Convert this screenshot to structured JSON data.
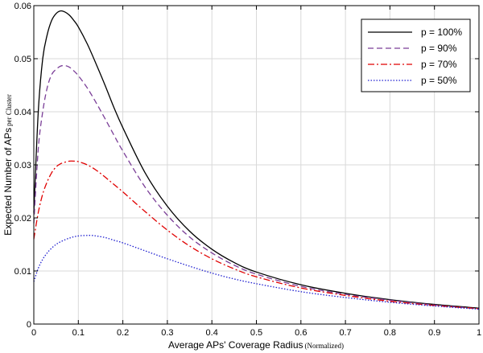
{
  "chart_data": {
    "type": "line",
    "xlabel": "Average APs' Coverage Radius",
    "xlabel_sub": "(Normalized)",
    "ylabel": "Expected Number of APs",
    "ylabel_sub": "per Cluster",
    "xlim": [
      0,
      1
    ],
    "ylim": [
      0,
      0.06
    ],
    "x_ticks": [
      0,
      0.1,
      0.2,
      0.3,
      0.4,
      0.5,
      0.6,
      0.7,
      0.8,
      0.9,
      1
    ],
    "x_tick_labels": [
      "0",
      "0.1",
      "0.2",
      "0.3",
      "0.4",
      "0.5",
      "0.6",
      "0.7",
      "0.8",
      "0.9",
      "1"
    ],
    "y_ticks": [
      0,
      0.01,
      0.02,
      0.03,
      0.04,
      0.05,
      0.06
    ],
    "y_tick_labels": [
      "0",
      "0.01",
      "0.02",
      "0.03",
      "0.04",
      "0.05",
      "0.06"
    ],
    "grid": true,
    "legend_position": "top-right",
    "series": [
      {
        "name": "p = 100%",
        "color": "#000000",
        "dash": "solid",
        "x": [
          0,
          0.01,
          0.02,
          0.03,
          0.04,
          0.05,
          0.06,
          0.07,
          0.08,
          0.09,
          0.1,
          0.12,
          0.14,
          0.16,
          0.18,
          0.2,
          0.25,
          0.3,
          0.35,
          0.4,
          0.45,
          0.5,
          0.6,
          0.7,
          0.8,
          0.9,
          1.0
        ],
        "y": [
          0.021,
          0.04,
          0.05,
          0.0545,
          0.0572,
          0.0585,
          0.059,
          0.0588,
          0.0582,
          0.0572,
          0.056,
          0.0528,
          0.049,
          0.045,
          0.0408,
          0.037,
          0.0285,
          0.0222,
          0.0175,
          0.0141,
          0.0116,
          0.0098,
          0.0074,
          0.0058,
          0.0046,
          0.0037,
          0.003
        ]
      },
      {
        "name": "p = 90%",
        "color": "#7b3f98",
        "dash": "dashed",
        "x": [
          0,
          0.01,
          0.02,
          0.03,
          0.04,
          0.05,
          0.06,
          0.07,
          0.08,
          0.09,
          0.1,
          0.12,
          0.14,
          0.16,
          0.18,
          0.2,
          0.25,
          0.3,
          0.35,
          0.4,
          0.45,
          0.5,
          0.6,
          0.7,
          0.8,
          0.9,
          1.0
        ],
        "y": [
          0.019,
          0.033,
          0.04,
          0.0445,
          0.047,
          0.048,
          0.0486,
          0.0487,
          0.0484,
          0.0477,
          0.0468,
          0.0445,
          0.0417,
          0.0387,
          0.0356,
          0.0326,
          0.0258,
          0.0205,
          0.0164,
          0.0134,
          0.0111,
          0.0094,
          0.0071,
          0.0056,
          0.0045,
          0.0036,
          0.0029
        ]
      },
      {
        "name": "p = 70%",
        "color": "#e00000",
        "dash": "dashdot",
        "x": [
          0,
          0.01,
          0.02,
          0.03,
          0.04,
          0.05,
          0.06,
          0.07,
          0.08,
          0.09,
          0.1,
          0.12,
          0.14,
          0.16,
          0.18,
          0.2,
          0.25,
          0.3,
          0.35,
          0.4,
          0.45,
          0.5,
          0.6,
          0.7,
          0.8,
          0.9,
          1.0
        ],
        "y": [
          0.016,
          0.021,
          0.0245,
          0.0268,
          0.0285,
          0.0296,
          0.0302,
          0.0305,
          0.0307,
          0.0307,
          0.0306,
          0.03,
          0.029,
          0.0277,
          0.0263,
          0.0249,
          0.0212,
          0.0177,
          0.0147,
          0.0123,
          0.0104,
          0.0089,
          0.0068,
          0.0054,
          0.0043,
          0.0035,
          0.0029
        ]
      },
      {
        "name": "p = 50%",
        "color": "#1f1fd0",
        "dash": "dotted",
        "x": [
          0,
          0.01,
          0.02,
          0.03,
          0.04,
          0.05,
          0.06,
          0.08,
          0.1,
          0.12,
          0.13,
          0.14,
          0.16,
          0.18,
          0.2,
          0.25,
          0.3,
          0.35,
          0.4,
          0.45,
          0.5,
          0.6,
          0.7,
          0.8,
          0.9,
          1.0
        ],
        "y": [
          0.008,
          0.0105,
          0.0122,
          0.0134,
          0.0143,
          0.015,
          0.0155,
          0.0162,
          0.0166,
          0.0167,
          0.0167,
          0.0166,
          0.0163,
          0.0158,
          0.0153,
          0.0138,
          0.0123,
          0.0109,
          0.0096,
          0.0085,
          0.0076,
          0.0061,
          0.005,
          0.0041,
          0.0034,
          0.0028
        ]
      }
    ]
  }
}
